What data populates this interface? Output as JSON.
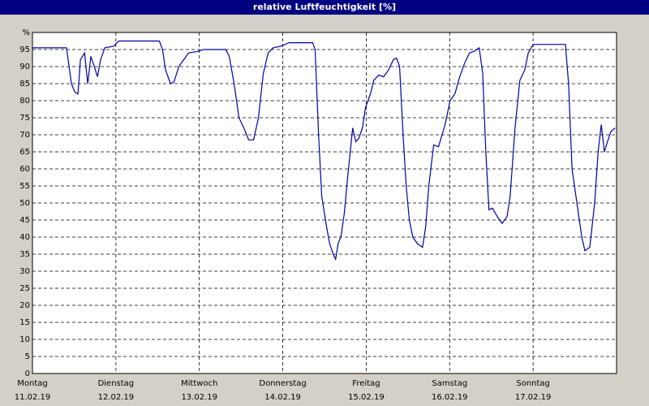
{
  "chart_data": {
    "type": "line",
    "title": "relative Luftfeuchtigkeit [%]",
    "x": [
      0,
      9.8,
      11.2,
      12.2,
      13.1,
      13.8,
      15.0,
      15.9,
      16.8,
      17.8,
      18.7,
      19.6,
      20.8,
      23.4,
      24.8,
      36.5,
      37.4,
      38.3,
      39.7,
      40.7,
      42.1,
      43.5,
      44.9,
      47.9,
      49.1,
      55.6,
      56.6,
      58.0,
      59.4,
      60.8,
      62.2,
      63.6,
      65.0,
      66.4,
      67.8,
      69.2,
      71.5,
      73.8,
      80.6,
      81.3,
      82.3,
      83.2,
      84.6,
      85.5,
      86.5,
      87.2,
      87.9,
      88.8,
      89.7,
      90.7,
      92.1,
      93.0,
      93.9,
      94.9,
      95.8,
      97.2,
      98.2,
      99.6,
      101.0,
      102.4,
      103.8,
      104.7,
      105.6,
      106.6,
      107.5,
      108.4,
      109.4,
      110.8,
      112.2,
      113.1,
      114.0,
      115.4,
      116.8,
      117.8,
      118.7,
      120.1,
      121.5,
      122.9,
      124.3,
      125.7,
      127.1,
      128.5,
      129.5,
      130.4,
      131.3,
      132.3,
      133.7,
      135.1,
      136.5,
      137.4,
      138.8,
      140.2,
      141.6,
      142.6,
      144.0,
      153.3,
      154.2,
      155.2,
      156.6,
      158.0,
      158.9,
      160.3,
      161.7,
      162.7,
      163.6,
      164.5,
      165.4,
      166.4,
      167.6
    ],
    "series": [
      {
        "name": "relative Luftfeuchtigkeit",
        "color": "#0000a8",
        "values": [
          95.5,
          95.5,
          85,
          82.5,
          82,
          92,
          94,
          85,
          93,
          90,
          87,
          92,
          95.5,
          96,
          97.5,
          97.5,
          95,
          89,
          85,
          85.5,
          90,
          92,
          94,
          94.5,
          95,
          95,
          93,
          85,
          75,
          72,
          68.5,
          68.5,
          75,
          88,
          94,
          95.5,
          96,
          97,
          97,
          95,
          70,
          52,
          43,
          38,
          35,
          33.5,
          38,
          40.5,
          47,
          58,
          72,
          68,
          69,
          72,
          78,
          82,
          86,
          87.5,
          87,
          89,
          92,
          92.5,
          90,
          70,
          55,
          45,
          40,
          38,
          37,
          43,
          55,
          67,
          66.5,
          70,
          73,
          80,
          82,
          87,
          91,
          94,
          94.5,
          95.5,
          88,
          65,
          48,
          48.5,
          46,
          44,
          46,
          52,
          72,
          86,
          89,
          94,
          96.5,
          96.5,
          85,
          60,
          50,
          40,
          36,
          37,
          50,
          65,
          73,
          65,
          68,
          71,
          72
        ]
      }
    ],
    "xlim": [
      0,
      168
    ],
    "xticks": [
      {
        "value": 0,
        "label": "Montag",
        "date": "11.02.19"
      },
      {
        "value": 24,
        "label": "Dienstag",
        "date": "12.02.19"
      },
      {
        "value": 48,
        "label": "Mittwoch",
        "date": "13.02.19"
      },
      {
        "value": 72,
        "label": "Donnerstag",
        "date": "14.02.19"
      },
      {
        "value": 96,
        "label": "Freitag",
        "date": "15.02.19"
      },
      {
        "value": 120,
        "label": "Samstag",
        "date": "16.02.19"
      },
      {
        "value": 144,
        "label": "Sonntag",
        "date": "17.02.19"
      }
    ],
    "ylim": [
      0,
      100
    ],
    "yticks": [
      0,
      5,
      10,
      15,
      20,
      25,
      30,
      35,
      40,
      45,
      50,
      55,
      60,
      65,
      70,
      75,
      80,
      85,
      90,
      95,
      {
        "value": 100,
        "label": "%"
      }
    ],
    "grid": true
  }
}
